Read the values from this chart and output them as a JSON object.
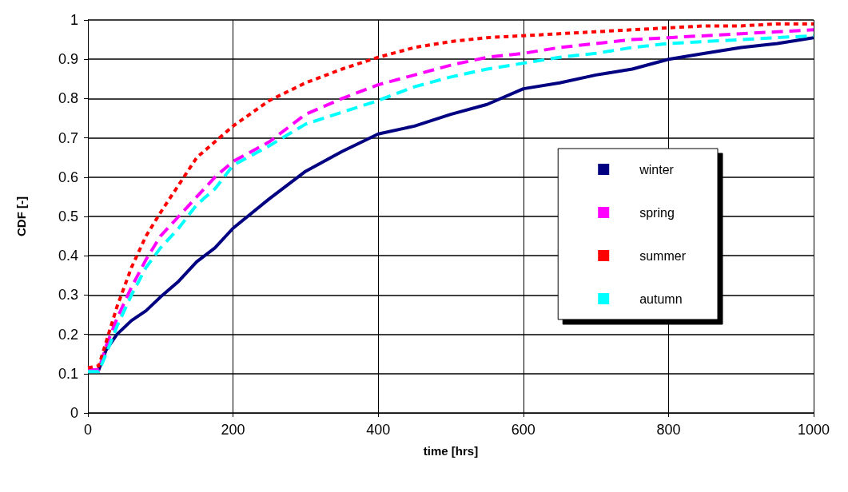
{
  "chart_data": {
    "type": "line",
    "xlabel": "time [hrs]",
    "ylabel": "CDF [-]",
    "x": [
      0,
      15,
      25,
      40,
      60,
      80,
      100,
      125,
      150,
      175,
      200,
      250,
      300,
      350,
      400,
      450,
      500,
      550,
      600,
      650,
      700,
      750,
      800,
      850,
      900,
      950,
      1000
    ],
    "xlim": [
      0,
      1000
    ],
    "xticks": [
      0,
      200,
      400,
      600,
      800,
      1000
    ],
    "ylim": [
      0,
      1
    ],
    "yticks": [
      0,
      0.1,
      0.2,
      0.3,
      0.4,
      0.5,
      0.6,
      0.7,
      0.8,
      0.9,
      1
    ],
    "grid": true,
    "legend": "right",
    "marker": "none",
    "series": [
      {
        "name": "winter",
        "color": "#000080",
        "line_style": "solid",
        "values": [
          0.11,
          0.11,
          0.16,
          0.2,
          0.235,
          0.26,
          0.295,
          0.335,
          0.385,
          0.42,
          0.47,
          0.545,
          0.615,
          0.665,
          0.71,
          0.73,
          0.76,
          0.785,
          0.825,
          0.84,
          0.86,
          0.875,
          0.9,
          0.915,
          0.93,
          0.94,
          0.955
        ]
      },
      {
        "name": "spring",
        "color": "#ff00ff",
        "line_style": "dashed",
        "values": [
          0.11,
          0.11,
          0.17,
          0.24,
          0.32,
          0.39,
          0.45,
          0.5,
          0.55,
          0.6,
          0.64,
          0.69,
          0.76,
          0.8,
          0.835,
          0.86,
          0.885,
          0.905,
          0.915,
          0.93,
          0.94,
          0.95,
          0.955,
          0.96,
          0.965,
          0.97,
          0.975
        ]
      },
      {
        "name": "summer",
        "color": "#ff0000",
        "line_style": "dotted",
        "values": [
          0.115,
          0.12,
          0.18,
          0.27,
          0.37,
          0.45,
          0.51,
          0.58,
          0.65,
          0.69,
          0.73,
          0.795,
          0.84,
          0.875,
          0.905,
          0.93,
          0.945,
          0.955,
          0.96,
          0.965,
          0.97,
          0.975,
          0.98,
          0.985,
          0.985,
          0.99,
          0.99
        ]
      },
      {
        "name": "autumn",
        "color": "#00ffff",
        "line_style": "dashed",
        "values": [
          0.105,
          0.105,
          0.15,
          0.22,
          0.3,
          0.37,
          0.42,
          0.47,
          0.53,
          0.57,
          0.63,
          0.68,
          0.735,
          0.765,
          0.795,
          0.83,
          0.855,
          0.875,
          0.89,
          0.905,
          0.915,
          0.93,
          0.94,
          0.945,
          0.95,
          0.955,
          0.96
        ]
      }
    ]
  }
}
